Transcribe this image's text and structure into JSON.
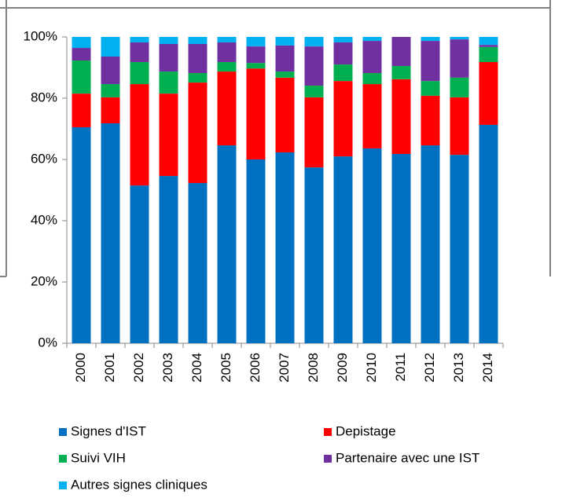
{
  "chart_data": {
    "type": "stacked_bar",
    "categories": [
      "2000",
      "2001",
      "2002",
      "2003",
      "2004",
      "2005",
      "2006",
      "2007",
      "2008",
      "2009",
      "2010",
      "2011",
      "2012",
      "2013",
      "2014"
    ],
    "series": [
      {
        "name": "Signes d'IST",
        "color": "#0070c0",
        "values": [
          70.5,
          71.8,
          51.5,
          54.6,
          52.3,
          64.6,
          60,
          62.3,
          57.4,
          61,
          63.6,
          61.8,
          64.6,
          61.5,
          71.3
        ]
      },
      {
        "name": "Depistage",
        "color": "#ff0000",
        "values": [
          11,
          8.5,
          33.1,
          26.9,
          32.8,
          24.1,
          29.7,
          24.4,
          22.9,
          24.6,
          21,
          24.4,
          16.2,
          18.8,
          20.5
        ]
      },
      {
        "name": "Suivi VIH",
        "color": "#00b050",
        "values": [
          10.8,
          4.3,
          7.2,
          7.2,
          3.1,
          3.1,
          1.8,
          2,
          3.8,
          5.4,
          3.6,
          4.3,
          4.8,
          6.4,
          4.9
        ]
      },
      {
        "name": "Partenaire avec une IST",
        "color": "#7030a0",
        "values": [
          4.1,
          9,
          6.4,
          9,
          9.5,
          6.4,
          5.4,
          8.5,
          12.8,
          7.2,
          10.5,
          9.5,
          13.1,
          12.5,
          0.7
        ]
      },
      {
        "name": "Autres signes cliniques",
        "color": "#00b0f0",
        "values": [
          3.6,
          6.4,
          1.8,
          2.3,
          2.3,
          1.8,
          3.1,
          2.8,
          3.1,
          1.8,
          1.3,
          0,
          1.3,
          0.8,
          2.6
        ]
      }
    ],
    "ylim": [
      0,
      100
    ],
    "yticks": [
      {
        "value": 0,
        "label": "0%"
      },
      {
        "value": 20,
        "label": "20%"
      },
      {
        "value": 40,
        "label": "40%"
      },
      {
        "value": 60,
        "label": "60%"
      },
      {
        "value": 80,
        "label": "80%"
      },
      {
        "value": 100,
        "label": "100%"
      }
    ]
  }
}
